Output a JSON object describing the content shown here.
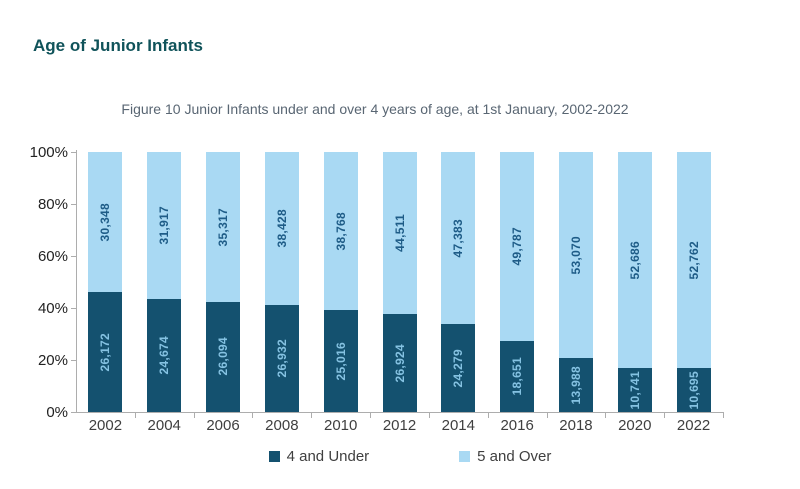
{
  "page": {
    "title": "Age of Junior Infants"
  },
  "colors": {
    "title_text": "#10535A",
    "caption_text": "#596673",
    "axis": "#ADADAD",
    "y_label_text": "#222222",
    "x_label_text": "#3F3F3F",
    "legend_text": "#3F3F3F"
  },
  "chart_data": {
    "type": "bar",
    "stacked": true,
    "stack_mode": "percent",
    "title": "Figure 10 Junior Infants under and over 4 years of age, at 1st January, 2002-2022",
    "categories": [
      "2002",
      "2004",
      "2006",
      "2008",
      "2010",
      "2012",
      "2014",
      "2016",
      "2018",
      "2020",
      "2022"
    ],
    "series": [
      {
        "name": "4 and Under",
        "color": "#14516F",
        "label_color": "#85C2E2",
        "values": [
          26172,
          24674,
          26094,
          26932,
          25016,
          26924,
          24279,
          18651,
          13988,
          10741,
          10695
        ]
      },
      {
        "name": "5 and Over",
        "color": "#A9D9F3",
        "label_color": "#1E5C87",
        "values": [
          30348,
          31917,
          35317,
          38428,
          38768,
          44511,
          47383,
          49787,
          53070,
          52686,
          52762
        ]
      }
    ],
    "xlabel": "",
    "ylabel": "",
    "y_ticks": [
      "0%",
      "20%",
      "40%",
      "60%",
      "80%",
      "100%"
    ],
    "ylim": [
      0,
      100
    ],
    "grid": false,
    "legend_position": "bottom"
  }
}
